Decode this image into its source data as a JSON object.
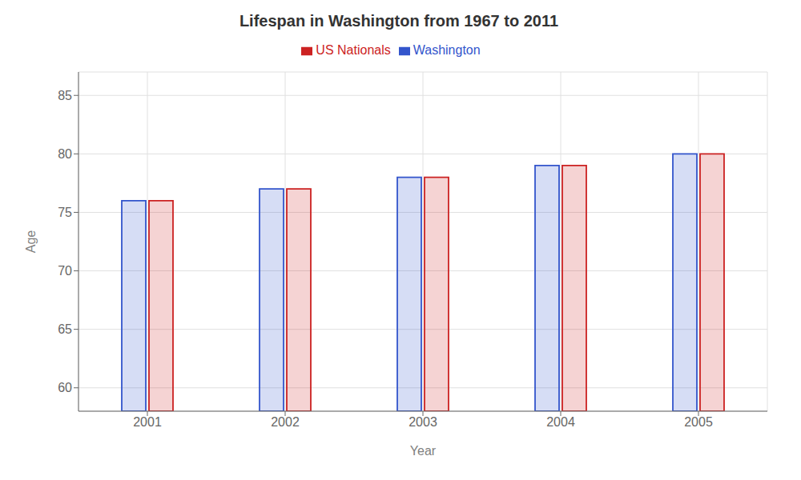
{
  "chart_data": {
    "type": "bar",
    "title": "Lifespan in Washington from 1967 to 2011",
    "xlabel": "Year",
    "ylabel": "Age",
    "categories": [
      "2001",
      "2002",
      "2003",
      "2004",
      "2005"
    ],
    "series": [
      {
        "name": "Washington",
        "color": "#3355cc",
        "values": [
          76,
          77,
          78,
          79,
          80
        ]
      },
      {
        "name": "US Nationals",
        "color": "#cc2222",
        "values": [
          76,
          77,
          78,
          79,
          80
        ]
      }
    ],
    "ylim": [
      58,
      87
    ],
    "yticks": [
      60,
      65,
      70,
      75,
      80,
      85
    ],
    "grid": true,
    "legend": "top"
  }
}
